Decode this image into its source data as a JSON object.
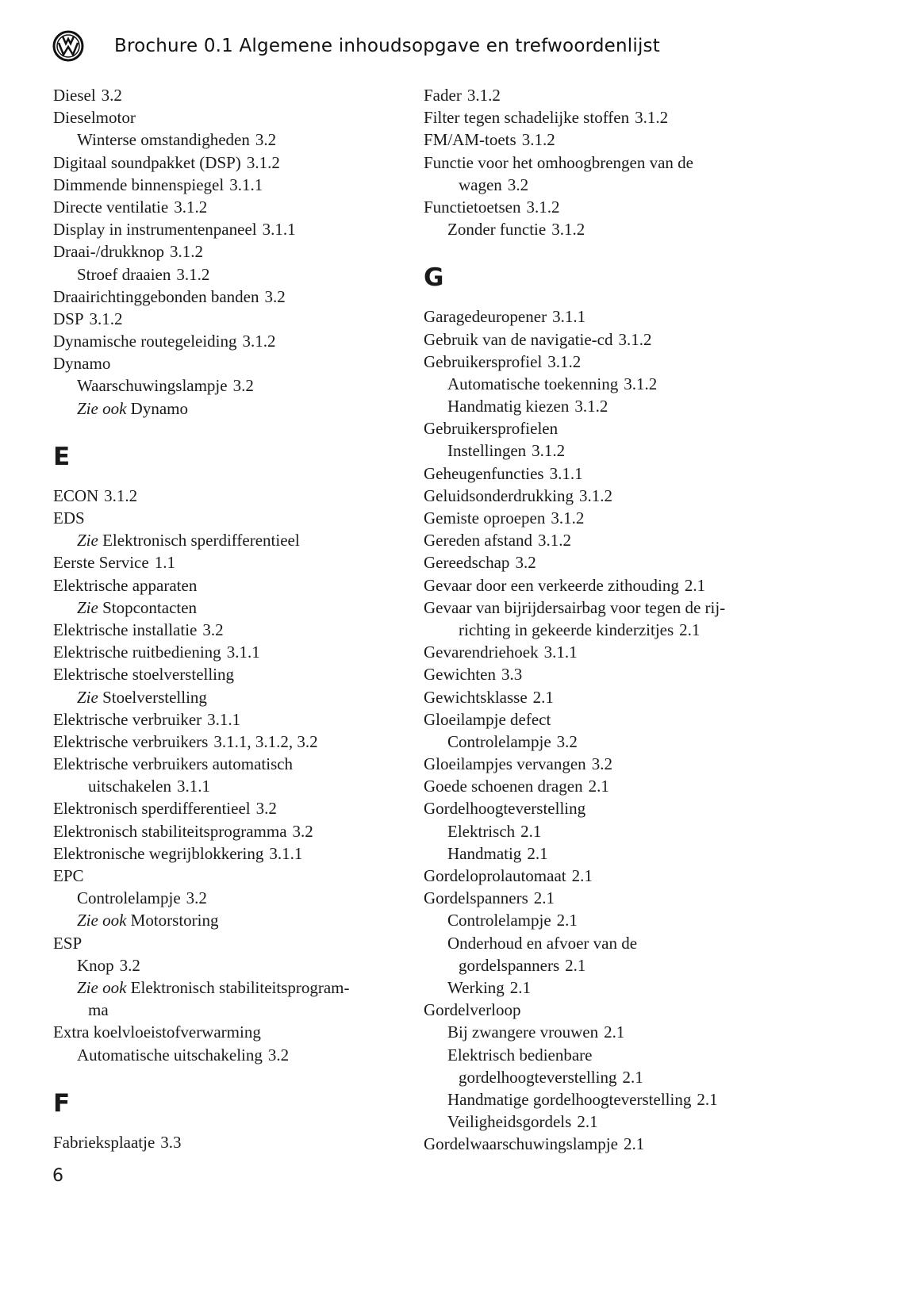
{
  "header": {
    "title": "Brochure 0.1  Algemene inhoudsopgave en trefwoordenlijst",
    "logo": "Volkswagen logo"
  },
  "page_number": "6",
  "columns": [
    [
      {
        "t": "Diesel",
        "r": "3.2",
        "l": 0
      },
      {
        "t": "Dieselmotor",
        "l": 0
      },
      {
        "t": "Winterse omstandigheden",
        "r": "3.2",
        "l": 1
      },
      {
        "t": "Digitaal soundpakket (DSP)",
        "r": "3.1.2",
        "l": 0
      },
      {
        "t": "Dimmende binnenspiegel",
        "r": "3.1.1",
        "l": 0
      },
      {
        "t": "Directe ventilatie",
        "r": "3.1.2",
        "l": 0
      },
      {
        "t": "Display in instrumentenpaneel",
        "r": "3.1.1",
        "l": 0
      },
      {
        "t": "Draai-/drukknop",
        "r": "3.1.2",
        "l": 0
      },
      {
        "t": "Stroef draaien",
        "r": "3.1.2",
        "l": 1
      },
      {
        "t": "Draairichtinggebonden banden",
        "r": "3.2",
        "l": 0
      },
      {
        "t": "DSP",
        "r": "3.1.2",
        "l": 0
      },
      {
        "t": "Dynamische routegeleiding",
        "r": "3.1.2",
        "l": 0
      },
      {
        "t": "Dynamo",
        "l": 0
      },
      {
        "t": "Waarschuwingslampje",
        "r": "3.2",
        "l": 1
      },
      {
        "s": "Zie ook",
        "t": "Dynamo",
        "l": 1
      },
      {
        "h": "E"
      },
      {
        "t": "ECON",
        "r": "3.1.2",
        "l": 0
      },
      {
        "t": "EDS",
        "l": 0
      },
      {
        "s": "Zie",
        "t": "Elektronisch sperdifferentieel",
        "l": 1
      },
      {
        "t": "Eerste Service",
        "r": "1.1",
        "l": 0
      },
      {
        "t": "Elektrische apparaten",
        "l": 0
      },
      {
        "s": "Zie",
        "t": "Stopcontacten",
        "l": 1
      },
      {
        "t": "Elektrische installatie",
        "r": "3.2",
        "l": 0
      },
      {
        "t": "Elektrische ruitbediening",
        "r": "3.1.1",
        "l": 0
      },
      {
        "t": "Elektrische stoelverstelling",
        "l": 0
      },
      {
        "s": "Zie",
        "t": "Stoelverstelling",
        "l": 1
      },
      {
        "t": "Elektrische verbruiker",
        "r": "3.1.1",
        "l": 0
      },
      {
        "t": "Elektrische verbruikers",
        "r": "3.1.1, 3.1.2, 3.2",
        "l": 0
      },
      {
        "t": "Elektrische verbruikers automatisch",
        "l": 0
      },
      {
        "t": "uitschakelen",
        "r": "3.1.1",
        "l": 2
      },
      {
        "t": "Elektronisch sperdifferentieel",
        "r": "3.2",
        "l": 0
      },
      {
        "t": "Elektronisch stabiliteitsprogramma",
        "r": "3.2",
        "l": 0
      },
      {
        "t": "Elektronische wegrijblokkering",
        "r": "3.1.1",
        "l": 0
      },
      {
        "t": "EPC",
        "l": 0
      },
      {
        "t": "Controlelampje",
        "r": "3.2",
        "l": 1
      },
      {
        "s": "Zie ook",
        "t": "Motorstoring",
        "l": 1
      },
      {
        "t": "ESP",
        "l": 0
      },
      {
        "t": "Knop",
        "r": "3.2",
        "l": 1
      },
      {
        "s": "Zie ook",
        "t": "Elektronisch stabiliteitsprogram-",
        "l": 1
      },
      {
        "t": "ma",
        "l": 2
      },
      {
        "t": "Extra koelvloeistofverwarming",
        "l": 0
      },
      {
        "t": "Automatische uitschakeling",
        "r": "3.2",
        "l": 1
      },
      {
        "h": "F"
      },
      {
        "t": "Fabrieksplaatje",
        "r": "3.3",
        "l": 0
      }
    ],
    [
      {
        "t": "Fader",
        "r": "3.1.2",
        "l": 0
      },
      {
        "t": "Filter tegen schadelijke stoffen",
        "r": "3.1.2",
        "l": 0
      },
      {
        "t": "FM/AM-toets",
        "r": "3.1.2",
        "l": 0
      },
      {
        "t": "Functie voor het omhoogbrengen van de",
        "l": 0
      },
      {
        "t": "wagen",
        "r": "3.2",
        "l": 2
      },
      {
        "t": "Functietoetsen",
        "r": "3.1.2",
        "l": 0
      },
      {
        "t": "Zonder functie",
        "r": "3.1.2",
        "l": 1
      },
      {
        "h": "G"
      },
      {
        "t": "Garagedeuropener",
        "r": "3.1.1",
        "l": 0
      },
      {
        "t": "Gebruik van de navigatie-cd",
        "r": "3.1.2",
        "l": 0
      },
      {
        "t": "Gebruikersprofiel",
        "r": "3.1.2",
        "l": 0
      },
      {
        "t": "Automatische toekenning",
        "r": "3.1.2",
        "l": 1
      },
      {
        "t": "Handmatig kiezen",
        "r": "3.1.2",
        "l": 1
      },
      {
        "t": "Gebruikersprofielen",
        "l": 0
      },
      {
        "t": "Instellingen",
        "r": "3.1.2",
        "l": 1
      },
      {
        "t": "Geheugenfuncties",
        "r": "3.1.1",
        "l": 0
      },
      {
        "t": "Geluidsonderdrukking",
        "r": "3.1.2",
        "l": 0
      },
      {
        "t": "Gemiste oproepen",
        "r": "3.1.2",
        "l": 0
      },
      {
        "t": "Gereden afstand",
        "r": "3.1.2",
        "l": 0
      },
      {
        "t": "Gereedschap",
        "r": "3.2",
        "l": 0
      },
      {
        "t": "Gevaar door een verkeerde zithouding",
        "r": "2.1",
        "l": 0
      },
      {
        "t": "Gevaar van bijrijdersairbag voor tegen de rij-",
        "l": 0
      },
      {
        "t": "richting in gekeerde kinderzitjes",
        "r": "2.1",
        "l": 2
      },
      {
        "t": "Gevarendriehoek",
        "r": "3.1.1",
        "l": 0
      },
      {
        "t": "Gewichten",
        "r": "3.3",
        "l": 0
      },
      {
        "t": "Gewichtsklasse",
        "r": "2.1",
        "l": 0
      },
      {
        "t": "Gloeilampje defect",
        "l": 0
      },
      {
        "t": "Controlelampje",
        "r": "3.2",
        "l": 1
      },
      {
        "t": "Gloeilampjes vervangen",
        "r": "3.2",
        "l": 0
      },
      {
        "t": "Goede schoenen dragen",
        "r": "2.1",
        "l": 0
      },
      {
        "t": "Gordelhoogteverstelling",
        "l": 0
      },
      {
        "t": "Elektrisch",
        "r": "2.1",
        "l": 1
      },
      {
        "t": "Handmatig",
        "r": "2.1",
        "l": 1
      },
      {
        "t": "Gordeloprolautomaat",
        "r": "2.1",
        "l": 0
      },
      {
        "t": "Gordelspanners",
        "r": "2.1",
        "l": 0
      },
      {
        "t": "Controlelampje",
        "r": "2.1",
        "l": 1
      },
      {
        "t": "Onderhoud en afvoer van de",
        "l": 1
      },
      {
        "t": "gordelspanners",
        "r": "2.1",
        "l": 2
      },
      {
        "t": "Werking",
        "r": "2.1",
        "l": 1
      },
      {
        "t": "Gordelverloop",
        "l": 0
      },
      {
        "t": "Bij zwangere vrouwen",
        "r": "2.1",
        "l": 1
      },
      {
        "t": "Elektrisch bedienbare",
        "l": 1
      },
      {
        "t": "gordelhoogteverstelling",
        "r": "2.1",
        "l": 2
      },
      {
        "t": "Handmatige gordelhoogteverstelling",
        "r": "2.1",
        "l": 1
      },
      {
        "t": "Veiligheidsgordels",
        "r": "2.1",
        "l": 1
      },
      {
        "t": "Gordelwaarschuwingslampje",
        "r": "2.1",
        "l": 0
      }
    ]
  ]
}
